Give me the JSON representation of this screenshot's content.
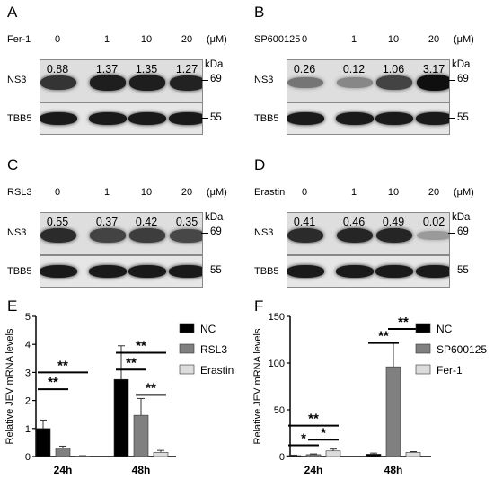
{
  "panels": [
    {
      "letter": "A",
      "treatment": "Fer-1",
      "concs": [
        "0",
        "1",
        "10",
        "20"
      ],
      "unit": "(μM)",
      "quant": [
        "0.88",
        "1.37",
        "1.35",
        "1.27"
      ],
      "target": "NS3",
      "control": "TBB5",
      "kda": "kDa",
      "mw_target": "69",
      "mw_control": "55",
      "intensity": [
        0.8,
        0.92,
        0.92,
        0.9
      ]
    },
    {
      "letter": "B",
      "treatment": "SP600125",
      "concs": [
        "0",
        "1",
        "10",
        "20"
      ],
      "unit": "(μM)",
      "quant": [
        "0.26",
        "0.12",
        "1.06",
        "3.17"
      ],
      "target": "NS3",
      "control": "TBB5",
      "kda": "kDa",
      "mw_target": "69",
      "mw_control": "55",
      "intensity": [
        0.45,
        0.35,
        0.72,
        1.0
      ]
    },
    {
      "letter": "C",
      "treatment": "RSL3",
      "concs": [
        "0",
        "1",
        "10",
        "20"
      ],
      "unit": "(μM)",
      "quant": [
        "0.55",
        "0.37",
        "0.42",
        "0.35"
      ],
      "target": "NS3",
      "control": "TBB5",
      "kda": "kDa",
      "mw_target": "69",
      "mw_control": "55",
      "intensity": [
        0.85,
        0.72,
        0.75,
        0.7
      ]
    },
    {
      "letter": "D",
      "treatment": "Erastin",
      "concs": [
        "0",
        "1",
        "10",
        "20"
      ],
      "unit": "(μM)",
      "quant": [
        "0.41",
        "0.46",
        "0.49",
        "0.02"
      ],
      "target": "NS3",
      "control": "TBB5",
      "kda": "kDa",
      "mw_target": "69",
      "mw_control": "55",
      "intensity": [
        0.85,
        0.88,
        0.88,
        0.25
      ]
    }
  ],
  "chart_data": [
    {
      "letter": "E",
      "type": "bar",
      "ylabel": "Relative JEV mRNA levels",
      "ylim": [
        0,
        5
      ],
      "yticks": [
        "0",
        "1",
        "2",
        "3",
        "4",
        "5"
      ],
      "categories": [
        "24h",
        "48h"
      ],
      "series": [
        {
          "name": "NC",
          "color": "#000000",
          "values": [
            1.0,
            2.75
          ],
          "errors": [
            0.3,
            1.2
          ]
        },
        {
          "name": "RSL3",
          "color": "#808080",
          "values": [
            0.3,
            1.47
          ],
          "errors": [
            0.07,
            0.6
          ]
        },
        {
          "name": "Erastin",
          "color": "#dcdcdc",
          "values": [
            0.02,
            0.15
          ],
          "errors": [
            0.01,
            0.07
          ]
        }
      ],
      "significance": [
        {
          "group": 0,
          "from": 0,
          "to": 1,
          "label": "**",
          "y": 0.48
        },
        {
          "group": 0,
          "from": 0,
          "to": 2,
          "label": "**",
          "y": 0.6
        },
        {
          "group": 1,
          "from": 0,
          "to": 1,
          "label": "**",
          "y": 0.62
        },
        {
          "group": 1,
          "from": 0,
          "to": 2,
          "label": "**",
          "y": 0.74
        },
        {
          "group": 1,
          "from": 1,
          "to": 2,
          "label": "**",
          "y": 0.44
        }
      ],
      "legend_position": "right"
    },
    {
      "letter": "F",
      "type": "bar",
      "ylabel": "Relative JEV mRNA levels",
      "ylim": [
        0,
        150
      ],
      "yticks": [
        "0",
        "50",
        "100",
        "150"
      ],
      "categories": [
        "24h",
        "48h"
      ],
      "series": [
        {
          "name": "NC",
          "color": "#000000",
          "values": [
            1.0,
            2.5
          ],
          "errors": [
            0.5,
            1.2
          ]
        },
        {
          "name": "SP600125",
          "color": "#808080",
          "values": [
            2.0,
            96.0
          ],
          "errors": [
            0.8,
            26.0
          ]
        },
        {
          "name": "Fer-1",
          "color": "#dcdcdc",
          "values": [
            6.0,
            4.5
          ],
          "errors": [
            2.0,
            0.8
          ]
        }
      ],
      "significance": [
        {
          "group": 0,
          "from": 0,
          "to": 1,
          "label": "*",
          "y": 0.08
        },
        {
          "group": 0,
          "from": 1,
          "to": 2,
          "label": "*",
          "y": 0.12
        },
        {
          "group": 0,
          "from": 0,
          "to": 2,
          "label": "**",
          "y": 0.22
        },
        {
          "group": 1,
          "from": 0,
          "to": 1,
          "label": "**",
          "y": 0.81
        },
        {
          "group": 1,
          "from": 1,
          "to": 2,
          "label": "**",
          "y": 0.91
        }
      ],
      "legend_position": "right"
    }
  ]
}
